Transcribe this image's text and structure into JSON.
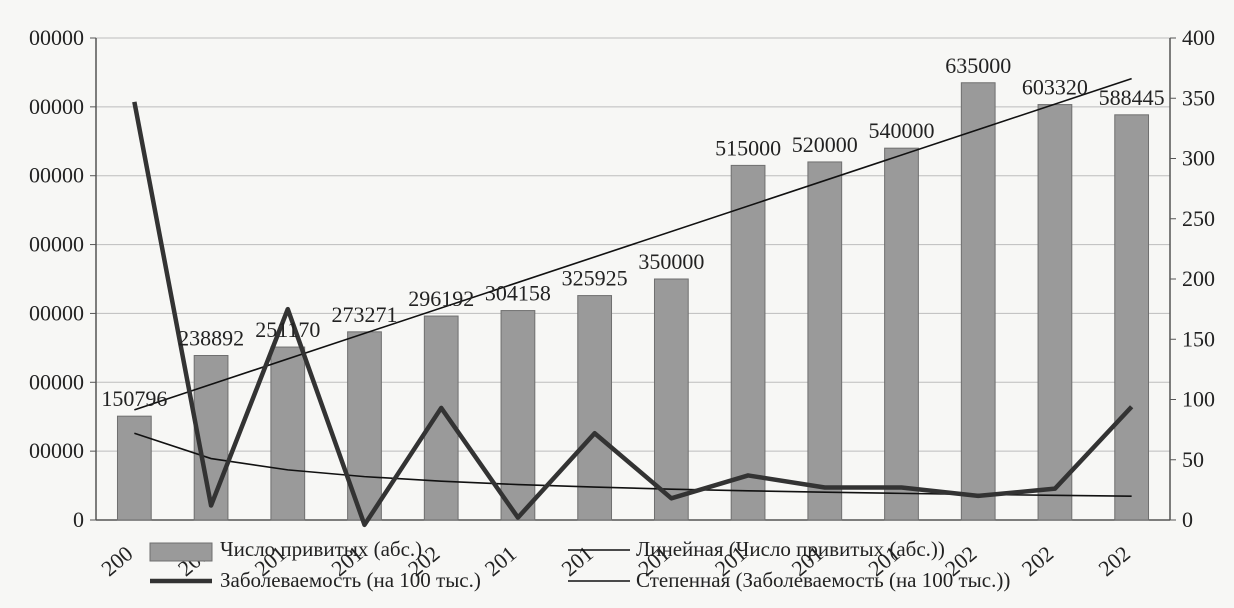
{
  "chart_data": {
    "type": "bar",
    "categories": [
      "200",
      "201",
      "201",
      "201",
      "202",
      "201",
      "201",
      "201",
      "201",
      "201",
      "201",
      "202",
      "202",
      "202"
    ],
    "left_axis": {
      "ticks": [
        "0",
        "00000",
        "00000",
        "00000",
        "00000",
        "00000",
        "00000",
        "00000"
      ],
      "ylim": [
        0,
        700000
      ]
    },
    "right_axis": {
      "ticks": [
        "0",
        "50",
        "100",
        "150",
        "200",
        "250",
        "300",
        "350",
        "400"
      ],
      "ylim": [
        0,
        400
      ]
    },
    "series": [
      {
        "name": "Число привитых (абс.)",
        "type": "bar",
        "axis": "left",
        "color": "#9a9a9a",
        "values": [
          150796,
          238892,
          251170,
          273271,
          296192,
          304158,
          325925,
          350000,
          515000,
          520000,
          540000,
          635000,
          603320,
          588445
        ],
        "labels": [
          "150796",
          "238892",
          "251170",
          "273271",
          "296192",
          "304158",
          "325925",
          "350000",
          "515000",
          "520000",
          "540000",
          "635000",
          "603320",
          "588445"
        ]
      },
      {
        "name": "Заболеваемость (на 100 тыс.)",
        "type": "line",
        "axis": "right",
        "color": "#333333",
        "values": [
          347,
          12,
          175,
          -4,
          93,
          2,
          72,
          18,
          37,
          27,
          27,
          20,
          26,
          94
        ]
      },
      {
        "name": "Линейная (Число привитых (абс.))",
        "type": "trendline",
        "axis": "left",
        "color": "#111111",
        "values": [
          160000,
          197000,
          234000,
          271000,
          308000,
          345000,
          382000,
          419000,
          456000,
          493000,
          530000,
          567000,
          604000,
          641000
        ]
      },
      {
        "name": "Степенная (Заболеваемость (на 100 тыс.))",
        "type": "trendline",
        "axis": "right",
        "color": "#111111",
        "values": [
          72,
          51,
          41.6,
          36,
          32.2,
          29.4,
          27.3,
          25.6,
          24.2,
          23.1,
          22.1,
          21.2,
          20.5,
          19.8
        ]
      }
    ],
    "grid": true,
    "legend_position": "bottom"
  }
}
